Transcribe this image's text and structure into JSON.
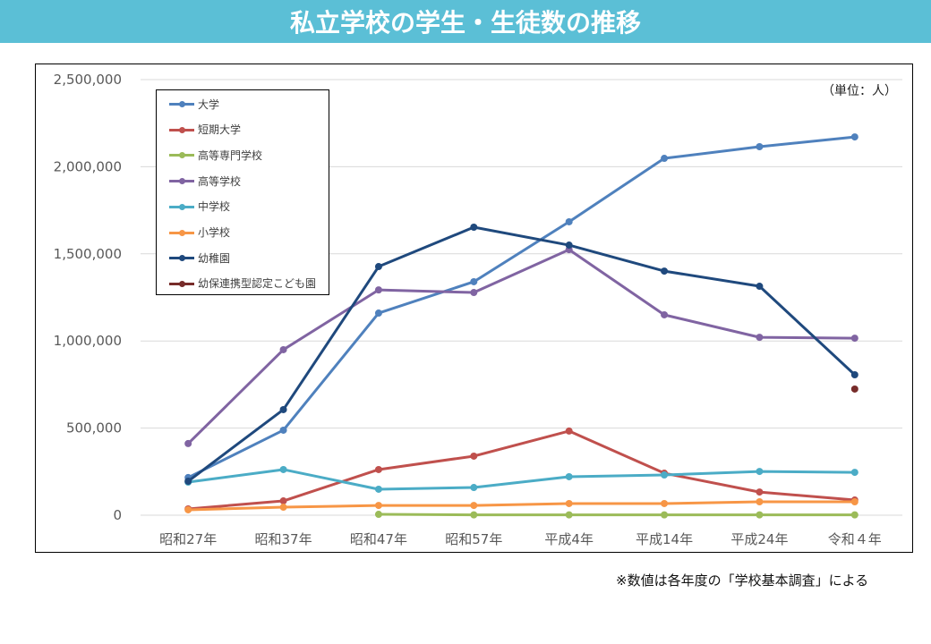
{
  "header": {
    "title": "私立学校の学生・生徒数の推移"
  },
  "unit_label": "（単位：人）",
  "footnote": "※数値は各年度の「学校基本調査」による",
  "chart_data": {
    "type": "line",
    "title": "私立学校の学生・生徒数の推移",
    "xlabel": "",
    "ylabel": "",
    "unit": "人",
    "categories": [
      "昭和27年",
      "昭和37年",
      "昭和47年",
      "昭和57年",
      "平成4年",
      "平成14年",
      "平成24年",
      "令和４年"
    ],
    "ylim": [
      0,
      2500000
    ],
    "yticks": [
      0,
      500000,
      1000000,
      1500000,
      2000000,
      2500000
    ],
    "ytick_labels": [
      "0",
      "500,000",
      "1,000,000",
      "1,500,000",
      "2,000,000",
      "2,500,000"
    ],
    "grid": true,
    "legend_position": "top-left",
    "series": [
      {
        "name": "大学",
        "color": "#4f81bd",
        "values": [
          216000,
          488000,
          1160000,
          1340000,
          1684000,
          2048000,
          2115000,
          2171000
        ]
      },
      {
        "name": "短期大学",
        "color": "#c0504d",
        "values": [
          36000,
          82000,
          262000,
          339000,
          483000,
          241000,
          133000,
          87000
        ]
      },
      {
        "name": "高等専門学校",
        "color": "#9bbb59",
        "values": [
          null,
          null,
          5000,
          2000,
          2000,
          2000,
          2000,
          2000
        ]
      },
      {
        "name": "高等学校",
        "color": "#8064a2",
        "values": [
          411000,
          950000,
          1293000,
          1278000,
          1524000,
          1150000,
          1021000,
          1016000
        ]
      },
      {
        "name": "中学校",
        "color": "#4bacc6",
        "values": [
          190000,
          262000,
          149000,
          159000,
          221000,
          231000,
          251000,
          246000
        ]
      },
      {
        "name": "小学校",
        "color": "#f79646",
        "values": [
          31000,
          46000,
          56000,
          56000,
          67000,
          67000,
          77000,
          77000
        ]
      },
      {
        "name": "幼稚園",
        "color": "#1f497d",
        "values": [
          195000,
          606000,
          1427000,
          1653000,
          1550000,
          1401000,
          1314000,
          806000
        ]
      },
      {
        "name": "幼保連携型認定こども園",
        "color": "#772c2a",
        "values": [
          null,
          null,
          null,
          null,
          null,
          null,
          null,
          724000
        ]
      }
    ]
  }
}
